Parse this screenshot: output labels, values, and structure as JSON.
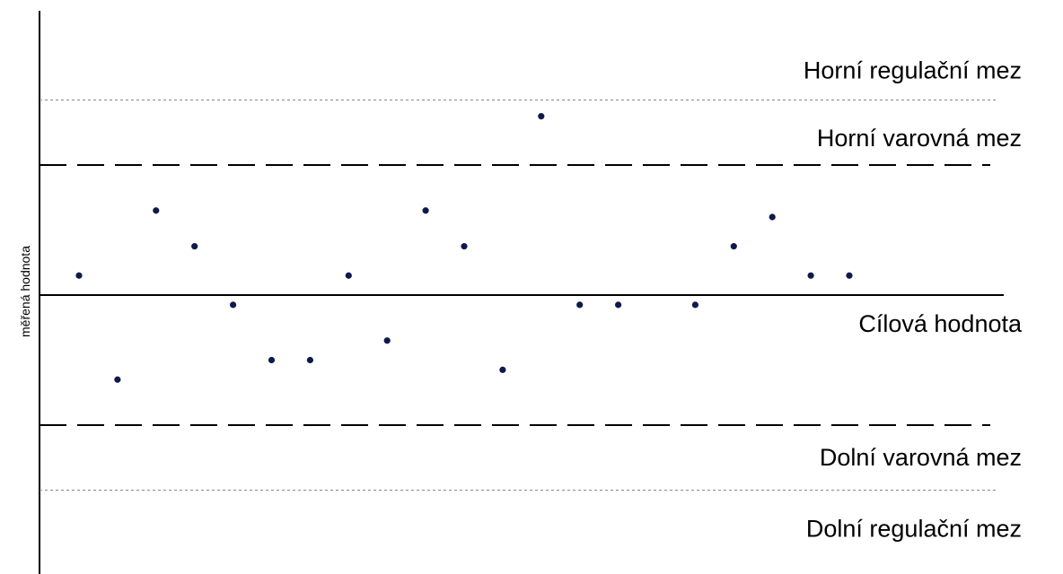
{
  "chart_data": {
    "type": "scatter",
    "title": "",
    "xlabel": "",
    "ylabel": "měřená hodnota",
    "grid": false,
    "legend": "none",
    "ylim": [
      -4.0,
      4.0
    ],
    "reference_lines": [
      {
        "label": "Horní regulační mez",
        "value": 3.0,
        "style": "dotted"
      },
      {
        "label": "Horní varovná mez",
        "value": 2.0,
        "style": "dashed"
      },
      {
        "label": "Cílová hodnota",
        "value": 0.0,
        "style": "solid"
      },
      {
        "label": "Dolní varovná mez",
        "value": -2.0,
        "style": "dashed"
      },
      {
        "label": "Dolní regulační mez",
        "value": -3.0,
        "style": "dotted"
      }
    ],
    "series": [
      {
        "x": [
          1,
          2,
          3,
          4,
          5,
          6,
          7,
          8,
          9,
          10,
          11,
          12,
          13,
          14,
          15,
          16,
          17,
          18,
          19,
          20,
          21,
          22,
          23
        ],
        "y": [
          0.3,
          -1.3,
          1.3,
          0.75,
          -0.15,
          -1.0,
          -1.0,
          0.3,
          -0.7,
          1.3,
          0.75,
          -1.15,
          2.75,
          -0.15,
          -0.15,
          null,
          -0.15,
          0.75,
          1.2,
          0.3,
          0.3,
          null,
          null
        ]
      }
    ],
    "colors": {
      "marker": "#0d1a4a",
      "line": "#000000",
      "dotted_line": "#888888"
    }
  }
}
